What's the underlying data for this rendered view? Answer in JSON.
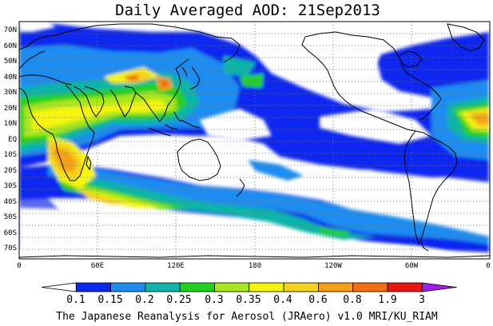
{
  "title": "Daily Averaged AOD: 21Sep2013",
  "footer": "The Japanese Reanalysis for Aerosol (JRAero) v1.0 MRI/KU_RIAM",
  "lat_labels": [
    "70N",
    "60N",
    "50N",
    "40N",
    "30N",
    "20N",
    "10N",
    "EQ",
    "10S",
    "20S",
    "30S",
    "40S",
    "50S",
    "60S",
    "70S"
  ],
  "lon_labels": [
    "0",
    "60E",
    "120E",
    "180",
    "120W",
    "60W",
    "0"
  ],
  "colorbar": {
    "labels": [
      "0.1",
      "0.15",
      "0.2",
      "0.25",
      "0.3",
      "0.35",
      "0.4",
      "0.6",
      "0.8",
      "1.9",
      "3"
    ],
    "colors": [
      "#ffffff",
      "#0b27f0",
      "#1e8cf0",
      "#10b4a8",
      "#22d020",
      "#a8e61e",
      "#f5f50a",
      "#f5d21e",
      "#f5a014",
      "#f56e10",
      "#eb1414",
      "#a01eeb"
    ]
  },
  "aod_levels": [
    0.1,
    0.15,
    0.2,
    0.25,
    0.3,
    0.35,
    0.4,
    0.6,
    0.8,
    1.9,
    3
  ],
  "colors": {
    "coast": "#000000",
    "grid": "#777777"
  }
}
